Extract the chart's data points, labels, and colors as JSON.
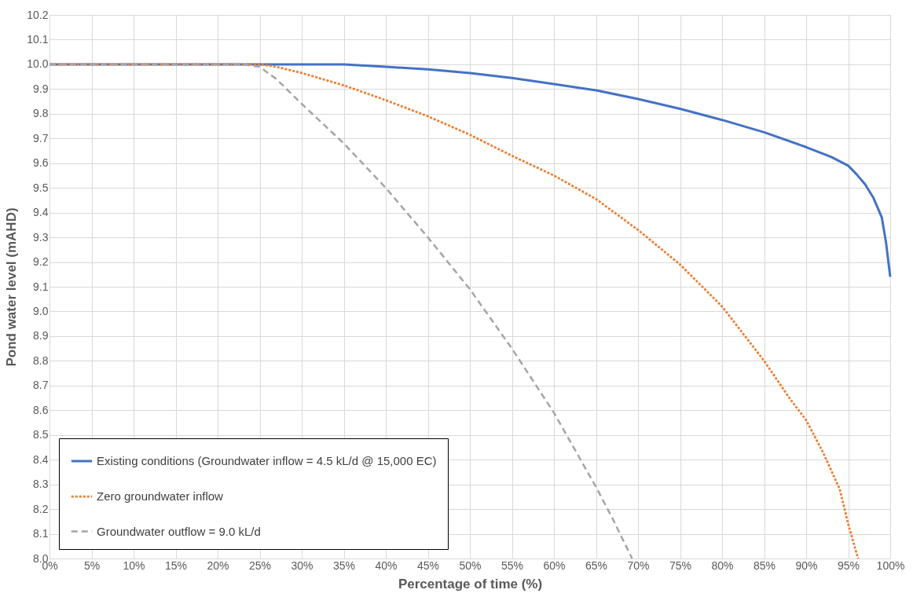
{
  "chart_data": {
    "type": "line",
    "xlabel": "Percentage of time (%)",
    "ylabel": "Pond water level (mAHD)",
    "xlim": [
      0,
      100
    ],
    "ylim": [
      8.0,
      10.2
    ],
    "xticks": [
      {
        "value": 0,
        "label": "0%"
      },
      {
        "value": 5,
        "label": "5%"
      },
      {
        "value": 10,
        "label": "10%"
      },
      {
        "value": 15,
        "label": "15%"
      },
      {
        "value": 20,
        "label": "20%"
      },
      {
        "value": 25,
        "label": "25%"
      },
      {
        "value": 30,
        "label": "30%"
      },
      {
        "value": 35,
        "label": "35%"
      },
      {
        "value": 40,
        "label": "40%"
      },
      {
        "value": 45,
        "label": "45%"
      },
      {
        "value": 50,
        "label": "50%"
      },
      {
        "value": 55,
        "label": "55%"
      },
      {
        "value": 60,
        "label": "60%"
      },
      {
        "value": 65,
        "label": "65%"
      },
      {
        "value": 70,
        "label": "70%"
      },
      {
        "value": 75,
        "label": "75%"
      },
      {
        "value": 80,
        "label": "80%"
      },
      {
        "value": 85,
        "label": "85%"
      },
      {
        "value": 90,
        "label": "90%"
      },
      {
        "value": 95,
        "label": "95%"
      },
      {
        "value": 100,
        "label": "100%"
      }
    ],
    "yticks": [
      {
        "value": 8.0,
        "label": "8.0"
      },
      8.1,
      8.2,
      8.3,
      8.4,
      8.5,
      8.6,
      8.7,
      8.8,
      8.9,
      {
        "value": 9.0,
        "label": "9.0"
      },
      9.1,
      9.2,
      9.3,
      9.4,
      9.5,
      9.6,
      9.7,
      9.8,
      9.9,
      {
        "value": 10.0,
        "label": "10.0"
      },
      10.1,
      10.2
    ],
    "grid": true,
    "legend": "bottom left",
    "marker": "none",
    "series": [
      {
        "name": "Existing conditions (Groundwater inflow = 4.5 kL/d @ 15,000 EC)",
        "color": "#4472c4",
        "line_style": "solid",
        "x": [
          0,
          10,
          20,
          30,
          35,
          40,
          45,
          50,
          55,
          60,
          65,
          70,
          75,
          80,
          85,
          90,
          93,
          95,
          96,
          97,
          98,
          99,
          99.5,
          100
        ],
        "values": [
          10.0,
          10.0,
          10.0,
          10.0,
          10.0,
          9.99,
          9.98,
          9.965,
          9.945,
          9.92,
          9.895,
          9.86,
          9.82,
          9.775,
          9.725,
          9.665,
          9.625,
          9.59,
          9.555,
          9.515,
          9.46,
          9.38,
          9.28,
          9.14
        ]
      },
      {
        "name": "Zero groundwater inflow",
        "color": "#ed7d31",
        "line_style": "dotted",
        "x": [
          0,
          10,
          20,
          25,
          27,
          30,
          35,
          40,
          45,
          50,
          55,
          60,
          65,
          70,
          75,
          80,
          85,
          88,
          90,
          92,
          94,
          95,
          96,
          96.2
        ],
        "values": [
          10.0,
          10.0,
          10.0,
          10.0,
          9.99,
          9.965,
          9.915,
          9.855,
          9.79,
          9.715,
          9.63,
          9.55,
          9.455,
          9.33,
          9.19,
          9.02,
          8.8,
          8.65,
          8.56,
          8.43,
          8.28,
          8.14,
          8.02,
          8.0
        ]
      },
      {
        "name": "Groundwater outflow = 9.0 kL/d",
        "color": "#a5a5a5",
        "line_style": "dashed",
        "x": [
          0,
          10,
          20,
          23,
          25,
          27,
          30,
          35,
          40,
          45,
          50,
          55,
          60,
          65,
          67,
          69.3
        ],
        "values": [
          10.0,
          10.0,
          10.0,
          10.0,
          9.99,
          9.94,
          9.84,
          9.68,
          9.5,
          9.3,
          9.09,
          8.85,
          8.59,
          8.29,
          8.16,
          8.0
        ]
      }
    ]
  }
}
